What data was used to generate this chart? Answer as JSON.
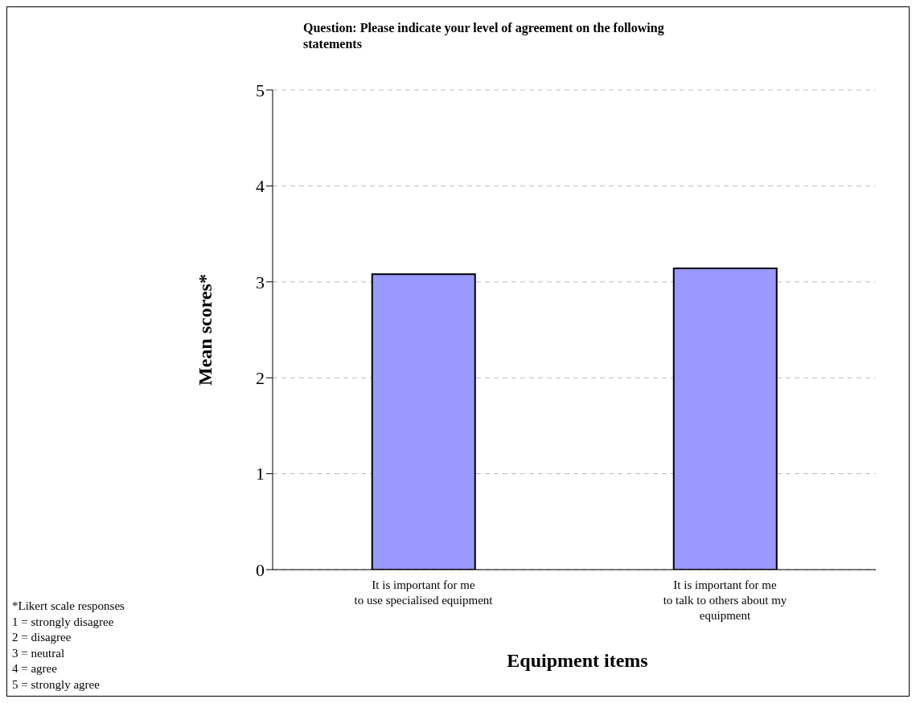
{
  "chart_data": {
    "type": "bar",
    "title": "Question:  Please indicate your level of agreement on the following statements",
    "xlabel": "Equipment items",
    "ylabel": "Mean scores*",
    "categories": [
      "It is important for me\nto use specialised equipment",
      "It is important for me\nto talk to others about my\nequipment"
    ],
    "values": [
      3.08,
      3.14
    ],
    "color": "#9999ff",
    "ylim": [
      0,
      5
    ],
    "yticks": [
      0,
      1,
      2,
      3,
      4,
      5
    ],
    "grid": "y",
    "legend": false,
    "annotations": [
      "*Likert scale responses",
      "1 = strongly disagree",
      "2 = disagree",
      "3 = neutral",
      "4 = agree",
      "5 = strongly agree"
    ]
  }
}
